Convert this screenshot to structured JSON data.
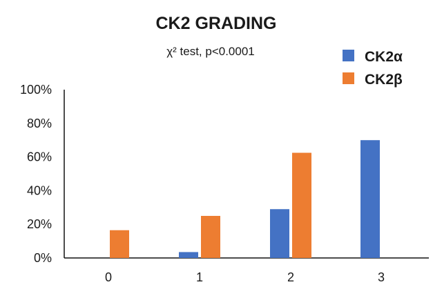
{
  "chart_data": {
    "type": "bar",
    "title": "CK2 GRADING",
    "subtitle": "χ² test, p<0.0001",
    "categories": [
      "0",
      "1",
      "2",
      "3"
    ],
    "series": [
      {
        "name": "CK2α",
        "values": [
          0,
          3.5,
          29,
          70
        ],
        "color": "#4472C4"
      },
      {
        "name": "CK2β",
        "values": [
          16.5,
          25,
          62.5,
          0
        ],
        "color": "#ED7D31"
      }
    ],
    "ylim": [
      0,
      100
    ],
    "yticks": [
      0,
      20,
      40,
      60,
      80,
      100
    ],
    "ytick_labels": [
      "0%",
      "20%",
      "40%",
      "60%",
      "80%",
      "100%"
    ],
    "xlabel": "",
    "ylabel": "",
    "grid": false,
    "legend_position": "top-right"
  }
}
